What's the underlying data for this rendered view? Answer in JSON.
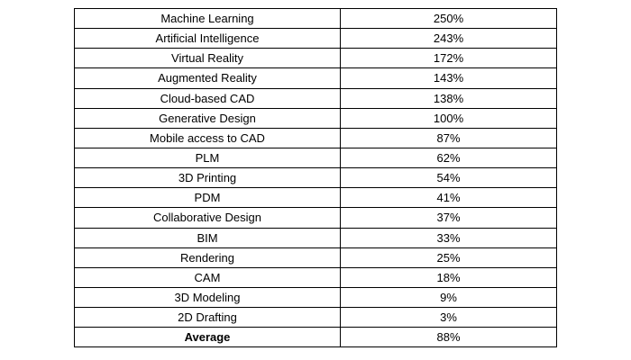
{
  "table": {
    "rows": [
      {
        "name": "Machine Learning",
        "value": "250%"
      },
      {
        "name": "Artificial Intelligence",
        "value": "243%"
      },
      {
        "name": "Virtual Reality",
        "value": "172%"
      },
      {
        "name": "Augmented Reality",
        "value": "143%"
      },
      {
        "name": "Cloud-based CAD",
        "value": "138%"
      },
      {
        "name": "Generative Design",
        "value": "100%"
      },
      {
        "name": "Mobile access to CAD",
        "value": "87%"
      },
      {
        "name": "PLM",
        "value": "62%"
      },
      {
        "name": "3D Printing",
        "value": "54%"
      },
      {
        "name": "PDM",
        "value": "41%"
      },
      {
        "name": "Collaborative Design",
        "value": "37%"
      },
      {
        "name": "BIM",
        "value": "33%"
      },
      {
        "name": "Rendering",
        "value": "25%"
      },
      {
        "name": "CAM",
        "value": "18%"
      },
      {
        "name": "3D Modeling",
        "value": "9%"
      },
      {
        "name": "2D Drafting",
        "value": "3%"
      }
    ],
    "average": {
      "label": "Average",
      "value": "88%"
    }
  }
}
